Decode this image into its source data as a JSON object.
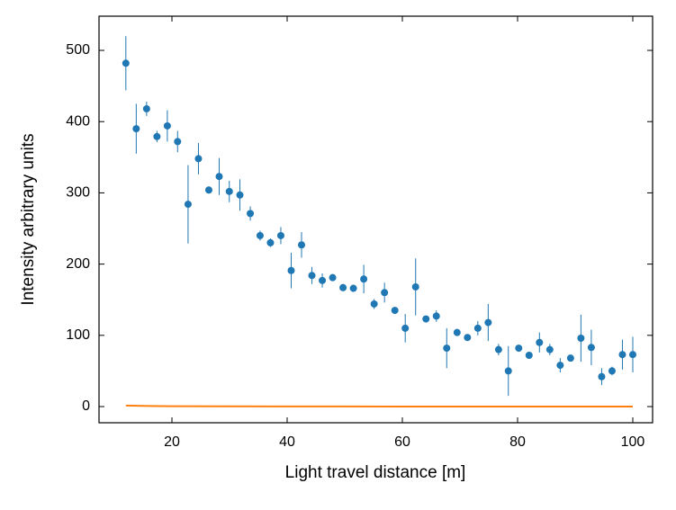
{
  "chart_data": {
    "type": "scatter",
    "xlabel": "Light travel distance [m]",
    "ylabel": "Intensity arbitrary units",
    "xlim": [
      7.34,
      103.44
    ],
    "xticks": [
      20,
      40,
      60,
      80,
      100
    ],
    "ylim": [
      -22.7,
      548
    ],
    "yticks": [
      0,
      100,
      200,
      300,
      400,
      500
    ],
    "grid": false,
    "series": [
      {
        "type": "errorbar",
        "color": "#1f77b4",
        "x": [
          12.0,
          13.8,
          15.6,
          17.4,
          19.2,
          20.98,
          22.8,
          24.6,
          26.4,
          28.2,
          29.96,
          31.8,
          33.6,
          35.3,
          37.1,
          38.9,
          40.7,
          42.5,
          44.3,
          46.1,
          47.9,
          49.7,
          51.5,
          53.3,
          55.1,
          56.9,
          58.7,
          60.5,
          62.3,
          64.1,
          65.9,
          67.7,
          69.5,
          71.3,
          73.1,
          74.9,
          76.7,
          78.4,
          80.2,
          82.0,
          83.8,
          85.6,
          87.4,
          89.2,
          91.0,
          92.8,
          94.6,
          96.4,
          98.2,
          100.0
        ],
        "values": [
          482,
          390,
          418,
          379,
          394,
          372,
          284,
          348,
          304,
          323,
          302,
          297,
          271,
          240,
          230,
          240,
          191,
          227,
          184,
          177,
          181,
          167,
          166,
          179,
          144,
          160,
          135,
          110,
          168,
          123,
          127,
          82,
          104,
          97,
          110,
          118,
          80,
          50,
          82,
          72,
          90,
          80,
          58,
          68,
          96,
          83,
          42,
          50,
          73,
          73
        ],
        "errors": [
          38,
          35,
          10,
          8,
          22,
          15,
          55,
          22,
          5,
          26,
          15,
          22,
          10,
          7,
          6,
          12,
          25,
          18,
          12,
          10,
          5,
          5,
          4,
          20,
          7,
          14,
          4,
          20,
          40,
          4,
          8,
          28,
          4,
          4,
          10,
          26,
          8,
          35,
          4,
          4,
          14,
          8,
          10,
          4,
          33,
          25,
          12,
          6,
          21,
          25
        ]
      },
      {
        "type": "line",
        "color": "#ff7f0e",
        "x": [
          12,
          16,
          20,
          30,
          40,
          60,
          80,
          100
        ],
        "values": [
          1.5,
          0.8,
          0.5,
          0.3,
          0.2,
          0.1,
          0.05,
          0.02
        ]
      }
    ]
  }
}
